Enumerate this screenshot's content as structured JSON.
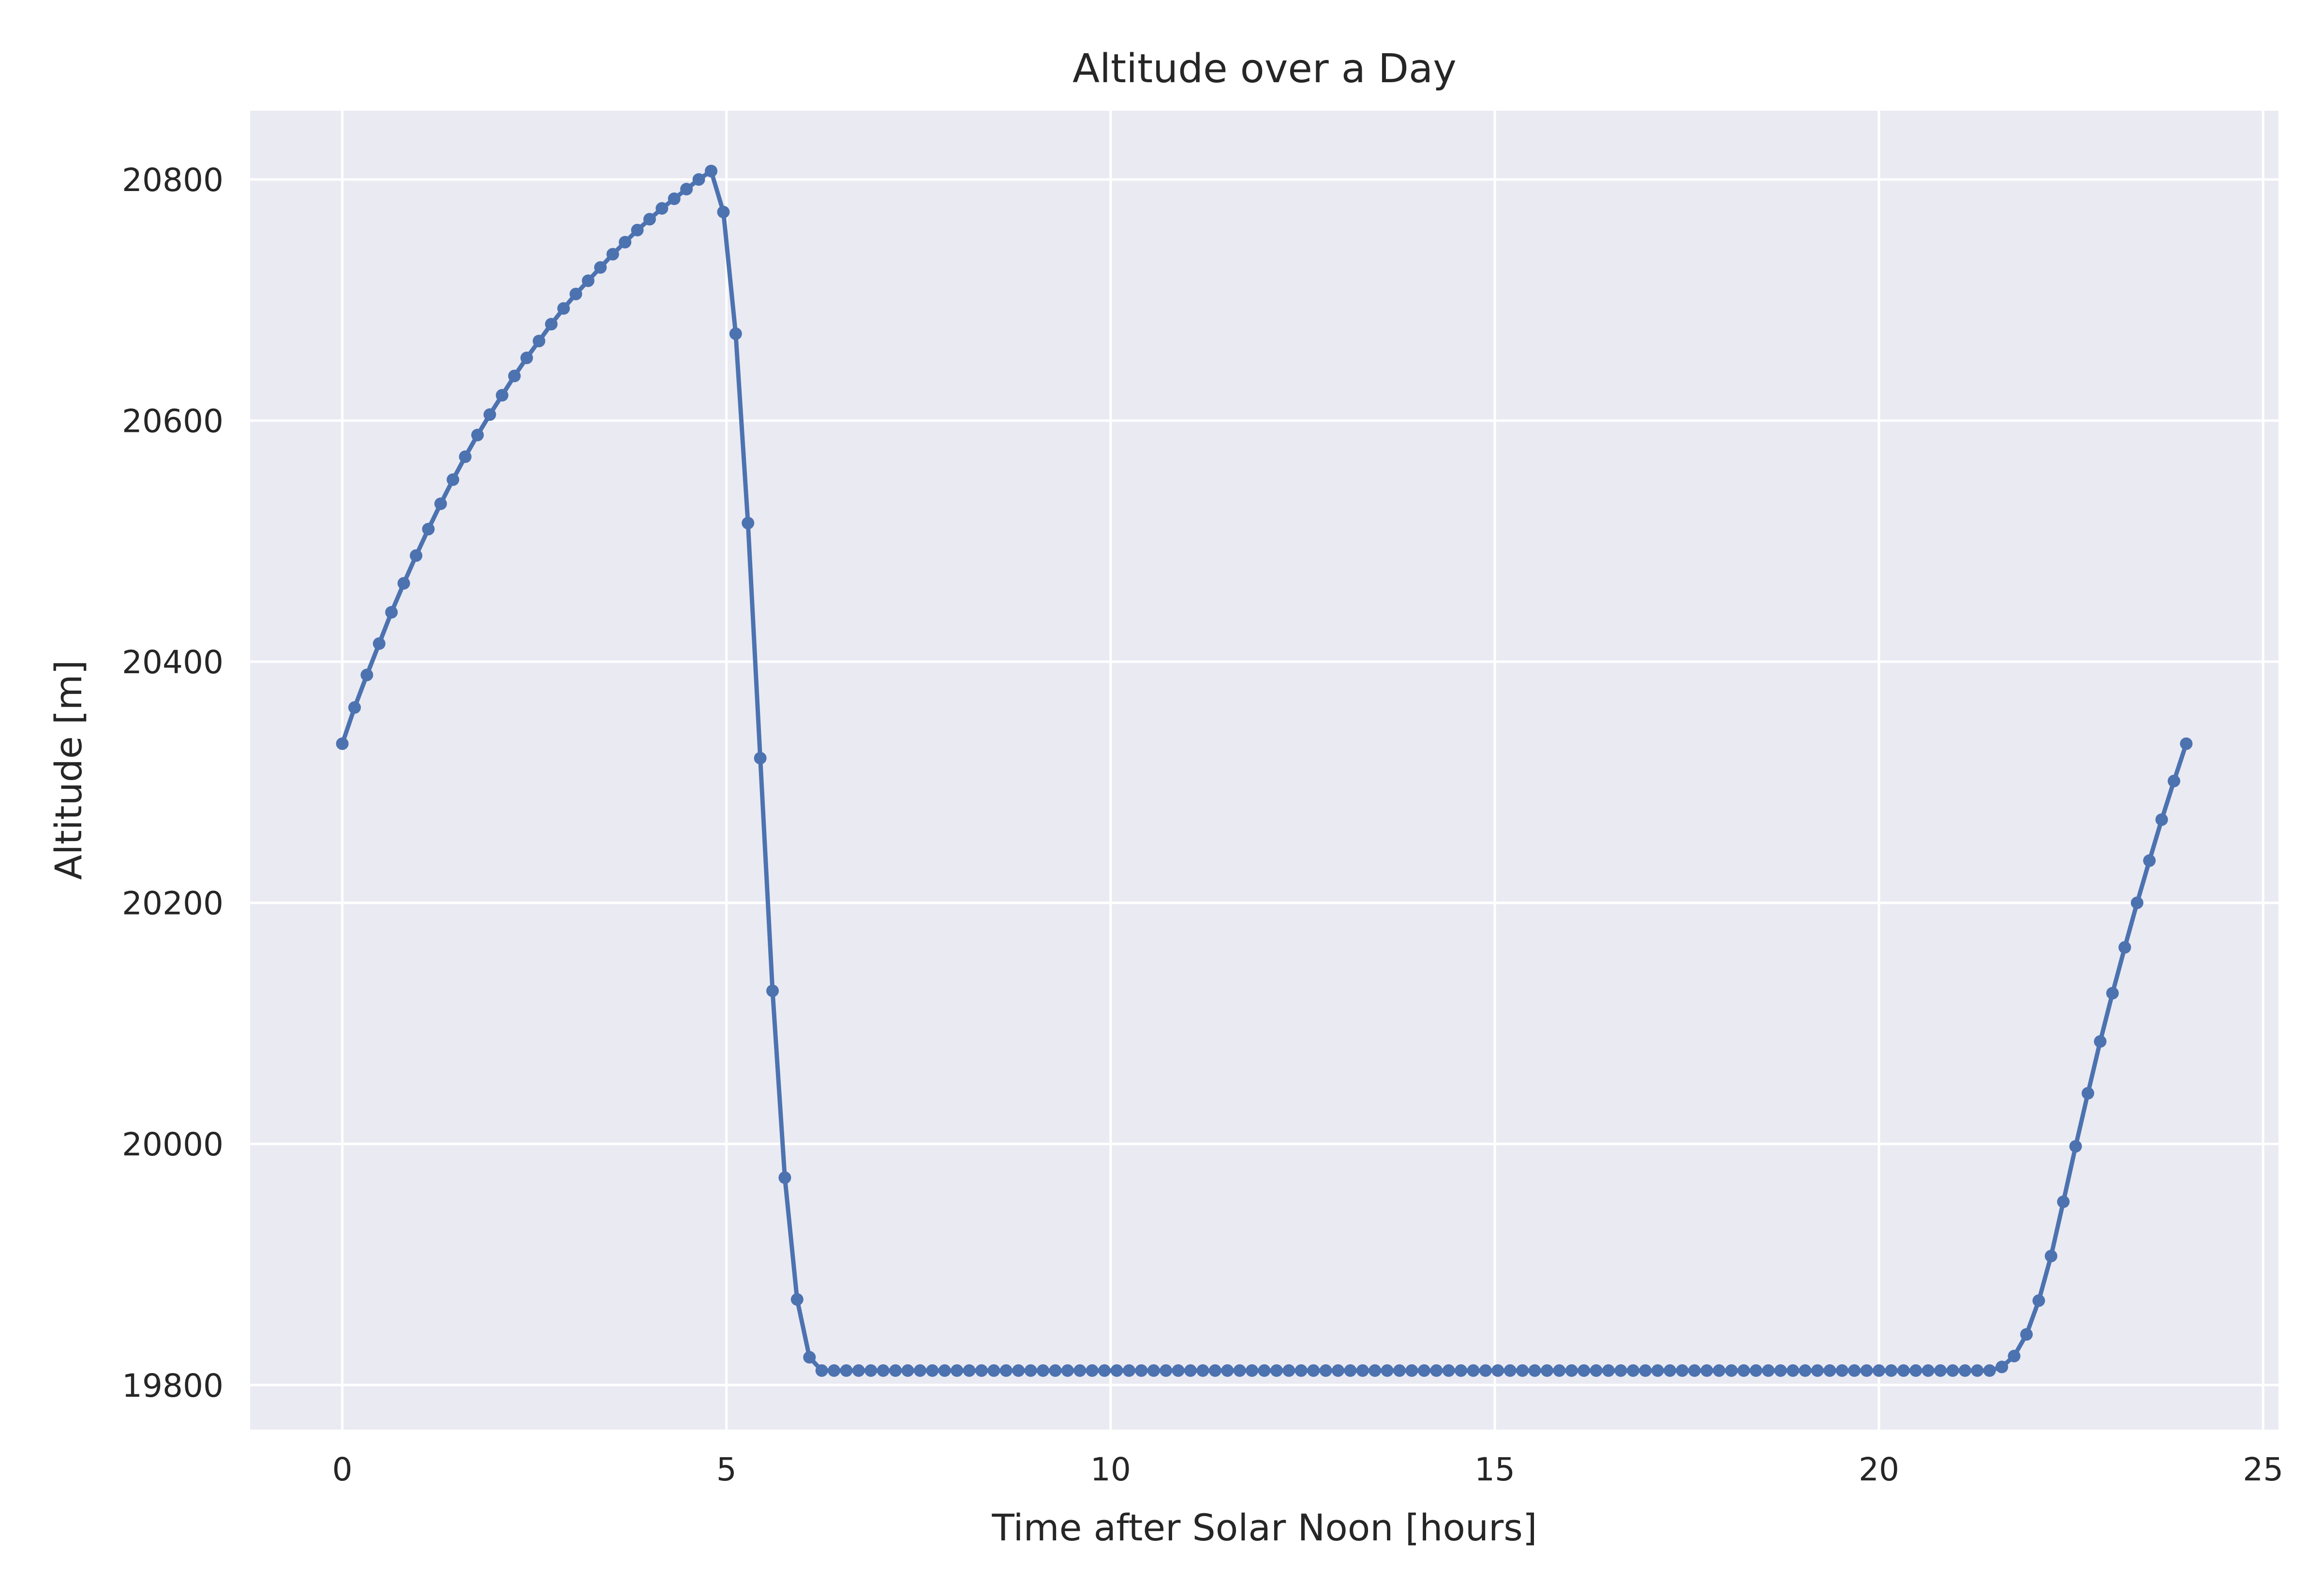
{
  "chart_data": {
    "type": "line",
    "title": "Altitude over a Day",
    "xlabel": "Time after Solar Noon [hours]",
    "ylabel": "Altitude [m]",
    "xlim": [
      -1.2,
      25.2
    ],
    "ylim": [
      19763,
      20857
    ],
    "xticks": [
      0,
      5,
      10,
      15,
      20,
      25
    ],
    "yticks": [
      19800,
      20000,
      20200,
      20400,
      20600,
      20800
    ],
    "grid": true,
    "colors": {
      "background": "#eaeaf2",
      "grid": "#ffffff",
      "line": "#4c72b0",
      "text": "#262626"
    },
    "series": [
      {
        "marker": "circle",
        "x_start": 0,
        "x_step": 0.16,
        "values": [
          20332,
          20362,
          20389,
          20415,
          20441,
          20465,
          20488,
          20510,
          20531,
          20551,
          20570,
          20588,
          20605,
          20621,
          20637,
          20652,
          20666,
          20680,
          20693,
          20705,
          20716,
          20727,
          20738,
          20748,
          20758,
          20767,
          20776,
          20784,
          20792,
          20800,
          20807,
          20773,
          20672,
          20515,
          20320,
          20127,
          19972,
          19871,
          19823,
          19812,
          19812,
          19812,
          19812,
          19812,
          19812,
          19812,
          19812,
          19812,
          19812,
          19812,
          19812,
          19812,
          19812,
          19812,
          19812,
          19812,
          19812,
          19812,
          19812,
          19812,
          19812,
          19812,
          19812,
          19812,
          19812,
          19812,
          19812,
          19812,
          19812,
          19812,
          19812,
          19812,
          19812,
          19812,
          19812,
          19812,
          19812,
          19812,
          19812,
          19812,
          19812,
          19812,
          19812,
          19812,
          19812,
          19812,
          19812,
          19812,
          19812,
          19812,
          19812,
          19812,
          19812,
          19812,
          19812,
          19812,
          19812,
          19812,
          19812,
          19812,
          19812,
          19812,
          19812,
          19812,
          19812,
          19812,
          19812,
          19812,
          19812,
          19812,
          19812,
          19812,
          19812,
          19812,
          19812,
          19812,
          19812,
          19812,
          19812,
          19812,
          19812,
          19812,
          19812,
          19812,
          19812,
          19812,
          19812,
          19812,
          19812,
          19812,
          19812,
          19812,
          19812,
          19812,
          19812,
          19815,
          19824,
          19842,
          19870,
          19907,
          19952,
          19998,
          20042,
          20085,
          20125,
          20163,
          20200,
          20235,
          20269,
          20301,
          20332
        ]
      }
    ]
  }
}
